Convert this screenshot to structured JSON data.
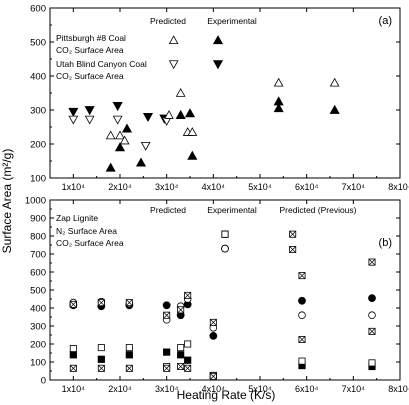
{
  "figure": {
    "shared_ylabel": "Surface Area  (m²/g)",
    "shared_xlabel": "Heating Rate (K/s)"
  },
  "chart_data": [
    {
      "type": "scatter",
      "panel": "(a)",
      "ylim": [
        100,
        600
      ],
      "xlim": [
        5000,
        80000
      ],
      "x_ticks": [
        10000,
        20000,
        30000,
        40000,
        50000,
        60000,
        70000,
        80000
      ],
      "x_tick_labels": [
        "1x10⁴",
        "2x10⁴",
        "3x10⁴",
        "4x10⁴",
        "5x10⁴",
        "6x10⁴",
        "7x10⁴",
        "8x10⁴"
      ],
      "y_ticks": [
        100,
        200,
        300,
        400,
        500,
        600
      ],
      "y_tick_labels": [
        "100",
        "200",
        "300",
        "400",
        "500",
        "600"
      ],
      "legend_lines": [
        "Pittsburgh #8 Coal",
        "CO₂ Surface Area",
        "Utah Blind Canyon Coal",
        "CO₂ Surface Area"
      ],
      "column_headers": [
        "Predicted",
        "Experimental"
      ],
      "series": [
        {
          "marker": "triangle-down-filled",
          "x": [
            10000,
            13500,
            19500,
            26000,
            29500
          ],
          "y": [
            295,
            300,
            312,
            280,
            275
          ]
        },
        {
          "marker": "triangle-down-open",
          "x": [
            10000,
            13500,
            19500,
            25500,
            30000
          ],
          "y": [
            272,
            272,
            272,
            195,
            268
          ]
        },
        {
          "marker": "triangle-up-filled",
          "x": [
            18000,
            20000,
            21500,
            24500,
            33000,
            35000,
            35500,
            41000,
            54000,
            54000,
            66000
          ],
          "y": [
            130,
            190,
            245,
            145,
            285,
            290,
            165,
            505,
            325,
            305,
            300
          ]
        },
        {
          "marker": "triangle-up-open",
          "x": [
            18000,
            20000,
            21000,
            30500,
            31500,
            33000,
            34500,
            35500,
            54000,
            66000
          ],
          "y": [
            225,
            225,
            210,
            285,
            505,
            350,
            235,
            235,
            380,
            380
          ]
        },
        {
          "marker": "triangle-down-filled",
          "x": [
            41000
          ],
          "y": [
            435
          ]
        },
        {
          "marker": "triangle-down-open",
          "x": [
            31500
          ],
          "y": [
            435
          ]
        }
      ]
    },
    {
      "type": "scatter",
      "panel": "(b)",
      "ylim": [
        0,
        1000
      ],
      "xlim": [
        5000,
        80000
      ],
      "x_ticks": [
        10000,
        20000,
        30000,
        40000,
        50000,
        60000,
        70000,
        80000
      ],
      "x_tick_labels": [
        "1x10⁴",
        "2x10⁴",
        "3x10⁴",
        "4x10⁴",
        "5x10⁴",
        "6x10⁴",
        "7x10⁴",
        "8x10⁴"
      ],
      "y_ticks": [
        0,
        100,
        200,
        300,
        400,
        500,
        600,
        700,
        800,
        900,
        1000
      ],
      "y_tick_labels": [
        "0",
        "100",
        "200",
        "300",
        "400",
        "500",
        "600",
        "700",
        "800",
        "900",
        "1000"
      ],
      "legend_lines": [
        "Zap Lignite",
        "N₂ Surface Area",
        "CO₂ Surface Area"
      ],
      "column_headers": [
        "Predicted",
        "Experimental",
        "Predicted (Previous)"
      ],
      "series": [
        {
          "marker": "circle-filled",
          "x": [
            10000,
            16000,
            22000,
            30000,
            33000,
            34500,
            40000,
            42500,
            59000,
            74000
          ],
          "y": [
            415,
            410,
            415,
            415,
            360,
            420,
            245,
            730,
            440,
            455
          ]
        },
        {
          "marker": "circle-open",
          "x": [
            10000,
            16000,
            22000,
            30000,
            33000,
            34500,
            40000,
            42500,
            59000,
            74000
          ],
          "y": [
            430,
            435,
            425,
            335,
            410,
            450,
            290,
            730,
            360,
            360
          ]
        },
        {
          "marker": "square-filled",
          "x": [
            10000,
            16000,
            22000,
            30000,
            33000,
            34500,
            40000,
            42500,
            59000,
            74000
          ],
          "y": [
            140,
            115,
            140,
            155,
            140,
            110,
            25,
            810,
            80,
            75
          ]
        },
        {
          "marker": "square-open",
          "x": [
            10000,
            16000,
            22000,
            30000,
            33000,
            34500,
            40000,
            42500,
            59000,
            74000
          ],
          "y": [
            175,
            180,
            180,
            75,
            180,
            200,
            25,
            810,
            105,
            95
          ]
        },
        {
          "marker": "square-x",
          "x": [
            10000,
            16000,
            22000,
            30000,
            33000,
            34500,
            40000,
            57000,
            59000,
            74000
          ],
          "y": [
            420,
            430,
            430,
            360,
            390,
            470,
            320,
            810,
            580,
            655
          ]
        },
        {
          "marker": "square-x",
          "x": [
            10000,
            16000,
            22000,
            30000,
            33000,
            34500,
            40000,
            57000,
            59000,
            74000
          ],
          "y": [
            65,
            65,
            65,
            65,
            75,
            65,
            20,
            725,
            225,
            270
          ]
        }
      ]
    }
  ]
}
